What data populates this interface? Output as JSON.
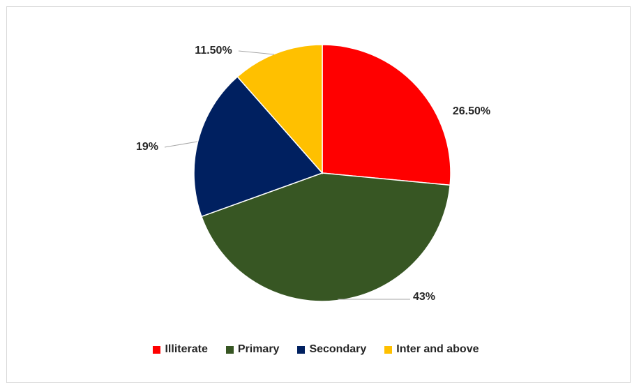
{
  "chart_data": {
    "type": "pie",
    "title": "",
    "legend_position": "bottom",
    "slices": [
      {
        "label": "Illiterate",
        "value": 26.5,
        "display": "26.50%",
        "color": "#ff0000"
      },
      {
        "label": "Primary",
        "value": 43,
        "display": "43%",
        "color": "#375623"
      },
      {
        "label": "Secondary",
        "value": 19,
        "display": "19%",
        "color": "#002060"
      },
      {
        "label": "Inter and above",
        "value": 11.5,
        "display": "11.50%",
        "color": "#ffc000"
      }
    ]
  }
}
